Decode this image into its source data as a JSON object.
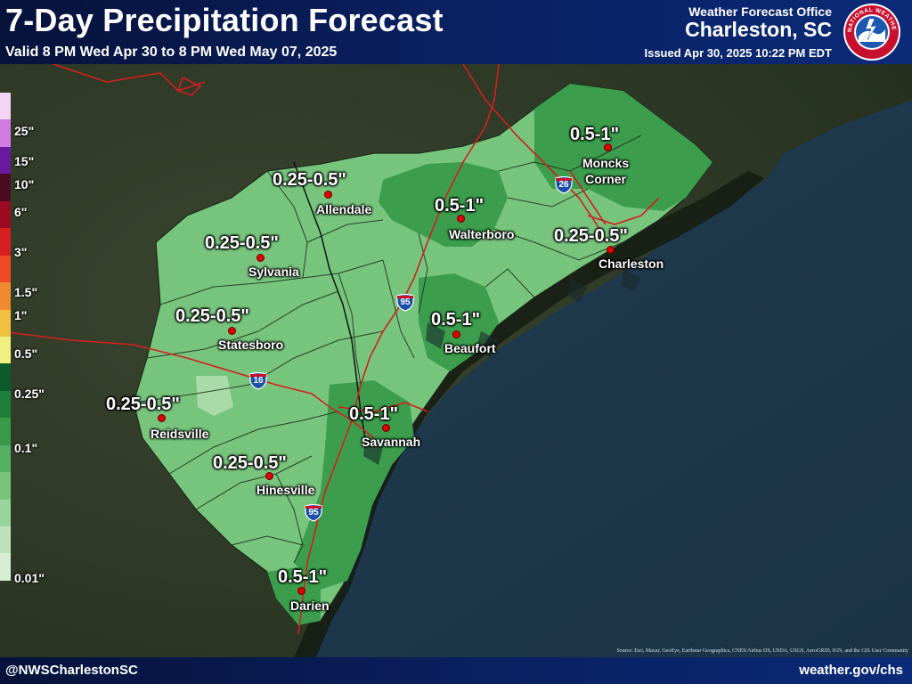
{
  "header": {
    "title": "7-Day Precipitation Forecast",
    "valid": "Valid 8 PM Wed Apr 30 to 8 PM Wed May 07, 2025",
    "office_label": "Weather Forecast Office",
    "office_name": "Charleston, SC",
    "issued": "Issued Apr 30, 2025 10:22 PM EDT",
    "logo_text": "NATIONAL WEATHER SERVICE"
  },
  "legend": {
    "colors": [
      "#f4d4f4",
      "#d07ce0",
      "#6a1aa0",
      "#4a0b20",
      "#9a0a20",
      "#d62020",
      "#f04a20",
      "#f08a30",
      "#f0c040",
      "#f0f080",
      "#0a5a2a",
      "#1d7f3a",
      "#3a9a4a",
      "#55b063",
      "#77c47d",
      "#9ad49d",
      "#bde3bc",
      "#d8eed4"
    ],
    "labels": [
      {
        "text": "25\"",
        "pos": 0.08
      },
      {
        "text": "15\"",
        "pos": 0.142
      },
      {
        "text": "10\"",
        "pos": 0.19
      },
      {
        "text": "6\"",
        "pos": 0.246
      },
      {
        "text": "3\"",
        "pos": 0.328
      },
      {
        "text": "1.5\"",
        "pos": 0.41
      },
      {
        "text": "1\"",
        "pos": 0.458
      },
      {
        "text": "0.5\"",
        "pos": 0.536
      },
      {
        "text": "0.25\"",
        "pos": 0.619
      },
      {
        "text": "0.1\"",
        "pos": 0.73
      },
      {
        "text": "0.01\"",
        "pos": 0.996
      }
    ]
  },
  "map": {
    "region": "Southeast Georgia and South Carolina Lowcountry",
    "cities": [
      {
        "name": "Allendale",
        "amount": "0.25-0.5\""
      },
      {
        "name": "Walterboro",
        "amount": "0.5-1\""
      },
      {
        "name": "Moncks\nCorner",
        "amount": "0.5-1\""
      },
      {
        "name": "Charleston",
        "amount": "0.25-0.5\""
      },
      {
        "name": "Sylvania",
        "amount": "0.25-0.5\""
      },
      {
        "name": "Statesboro",
        "amount": "0.25-0.5\""
      },
      {
        "name": "Beaufort",
        "amount": "0.5-1\""
      },
      {
        "name": "Reidsville",
        "amount": "0.25-0.5\""
      },
      {
        "name": "Savannah",
        "amount": "0.5-1\""
      },
      {
        "name": "Hinesville",
        "amount": "0.25-0.5\""
      },
      {
        "name": "Darien",
        "amount": "0.5-1\""
      }
    ],
    "interstates": [
      "26",
      "95",
      "16",
      "95"
    ]
  },
  "source": "Source: Esri, Maxar, GeoEye, Earthstar Geographics, CNES/Airbus DS, USDA, USGS, AeroGRID, IGN, and the GIS User Community",
  "footer": {
    "handle": "@NWSCharlestonSC",
    "website": "weather.gov/chs"
  },
  "colors": {
    "banner": "#0a1f5e",
    "ocean": "#1f3a4a",
    "land": "#2e3a25",
    "precip_low": "#77c47d",
    "precip_mid": "#3a9a4a",
    "city_dot": "#e00000"
  }
}
